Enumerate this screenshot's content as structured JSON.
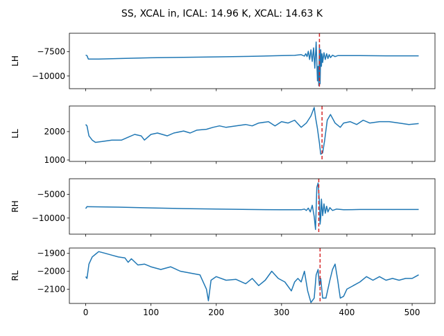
{
  "chart_data": {
    "type": "line",
    "title": "SS, XCAL in, ICAL: 14.96 K, XCAL: 14.63 K",
    "x_ticks": [
      0,
      100,
      200,
      300,
      400,
      500
    ],
    "xlim": [
      -25,
      535
    ],
    "series_color": "#1f77b4",
    "marker_color": "#d62728",
    "panels": [
      {
        "ylabel": "LH",
        "ylim": [
          -11300,
          -5600
        ],
        "yticks": [
          {
            "v": -10000,
            "label": "−10000"
          },
          {
            "v": -7500,
            "label": "−7500"
          }
        ],
        "marker_x": 358,
        "points": [
          [
            0,
            -7850
          ],
          [
            2,
            -7900
          ],
          [
            4,
            -8250
          ],
          [
            20,
            -8250
          ],
          [
            50,
            -8200
          ],
          [
            100,
            -8120
          ],
          [
            150,
            -8070
          ],
          [
            200,
            -8030
          ],
          [
            250,
            -7980
          ],
          [
            300,
            -7900
          ],
          [
            320,
            -7870
          ],
          [
            330,
            -7800
          ],
          [
            335,
            -7950
          ],
          [
            337,
            -7700
          ],
          [
            339,
            -8000
          ],
          [
            341,
            -7450
          ],
          [
            343,
            -8300
          ],
          [
            345,
            -7300
          ],
          [
            347,
            -8500
          ],
          [
            349,
            -7100
          ],
          [
            351,
            -9200
          ],
          [
            353,
            -6500
          ],
          [
            355,
            -10500
          ],
          [
            356,
            -9000
          ],
          [
            357,
            -11000
          ],
          [
            358,
            -6800
          ],
          [
            359,
            -10800
          ],
          [
            360,
            -7300
          ],
          [
            361,
            -9000
          ],
          [
            362,
            -7700
          ],
          [
            363,
            -8600
          ],
          [
            365,
            -7600
          ],
          [
            367,
            -8300
          ],
          [
            369,
            -7700
          ],
          [
            371,
            -8200
          ],
          [
            373,
            -7800
          ],
          [
            375,
            -8100
          ],
          [
            378,
            -7850
          ],
          [
            382,
            -8000
          ],
          [
            386,
            -7900
          ],
          [
            395,
            -7900
          ],
          [
            420,
            -7900
          ],
          [
            460,
            -7920
          ],
          [
            510,
            -7920
          ]
        ]
      },
      {
        "ylabel": "LL",
        "ylim": [
          950,
          2900
        ],
        "yticks": [
          {
            "v": 1000,
            "label": "1000"
          },
          {
            "v": 2000,
            "label": "2000"
          }
        ],
        "marker_x": 362,
        "points": [
          [
            0,
            2250
          ],
          [
            2,
            2200
          ],
          [
            5,
            1850
          ],
          [
            10,
            1700
          ],
          [
            15,
            1620
          ],
          [
            25,
            1650
          ],
          [
            40,
            1700
          ],
          [
            55,
            1700
          ],
          [
            65,
            1800
          ],
          [
            75,
            1900
          ],
          [
            85,
            1850
          ],
          [
            90,
            1700
          ],
          [
            100,
            1900
          ],
          [
            110,
            1950
          ],
          [
            125,
            1850
          ],
          [
            135,
            1950
          ],
          [
            150,
            2020
          ],
          [
            160,
            1950
          ],
          [
            170,
            2050
          ],
          [
            185,
            2080
          ],
          [
            195,
            2150
          ],
          [
            205,
            2200
          ],
          [
            215,
            2150
          ],
          [
            230,
            2200
          ],
          [
            245,
            2250
          ],
          [
            255,
            2200
          ],
          [
            265,
            2300
          ],
          [
            280,
            2350
          ],
          [
            290,
            2200
          ],
          [
            300,
            2350
          ],
          [
            310,
            2300
          ],
          [
            320,
            2400
          ],
          [
            330,
            2150
          ],
          [
            338,
            2300
          ],
          [
            345,
            2550
          ],
          [
            350,
            2850
          ],
          [
            352,
            2500
          ],
          [
            355,
            2100
          ],
          [
            358,
            1600
          ],
          [
            360,
            1200
          ],
          [
            363,
            1250
          ],
          [
            366,
            1700
          ],
          [
            370,
            2400
          ],
          [
            375,
            2600
          ],
          [
            382,
            2300
          ],
          [
            390,
            2150
          ],
          [
            395,
            2300
          ],
          [
            405,
            2350
          ],
          [
            415,
            2250
          ],
          [
            425,
            2400
          ],
          [
            435,
            2300
          ],
          [
            450,
            2350
          ],
          [
            465,
            2350
          ],
          [
            480,
            2300
          ],
          [
            495,
            2250
          ],
          [
            510,
            2280
          ]
        ]
      },
      {
        "ylabel": "RH",
        "ylim": [
          -13400,
          -1700
        ],
        "yticks": [
          {
            "v": -10000,
            "label": "−10000"
          },
          {
            "v": -5000,
            "label": "−5000"
          }
        ],
        "marker_x": 357,
        "points": [
          [
            0,
            -8000
          ],
          [
            2,
            -7600
          ],
          [
            50,
            -7700
          ],
          [
            100,
            -7850
          ],
          [
            150,
            -8000
          ],
          [
            200,
            -8100
          ],
          [
            250,
            -8200
          ],
          [
            300,
            -8250
          ],
          [
            330,
            -8250
          ],
          [
            335,
            -8100
          ],
          [
            338,
            -8400
          ],
          [
            341,
            -7900
          ],
          [
            344,
            -8700
          ],
          [
            347,
            -7300
          ],
          [
            350,
            -9700
          ],
          [
            352,
            -12400
          ],
          [
            354,
            -3500
          ],
          [
            356,
            -2600
          ],
          [
            358,
            -6500
          ],
          [
            359,
            -11300
          ],
          [
            360,
            -10000
          ],
          [
            361,
            -6000
          ],
          [
            363,
            -9500
          ],
          [
            365,
            -7000
          ],
          [
            367,
            -9000
          ],
          [
            369,
            -7500
          ],
          [
            371,
            -8700
          ],
          [
            374,
            -7800
          ],
          [
            378,
            -8400
          ],
          [
            384,
            -8100
          ],
          [
            395,
            -8250
          ],
          [
            420,
            -8200
          ],
          [
            460,
            -8200
          ],
          [
            510,
            -8200
          ]
        ]
      },
      {
        "ylabel": "RL",
        "ylim": [
          -2180,
          -1870
        ],
        "yticks": [
          {
            "v": -2100,
            "label": "−2100"
          },
          {
            "v": -2000,
            "label": "−2000"
          },
          {
            "v": -1900,
            "label": "−1900"
          }
        ],
        "marker_x": 359,
        "points": [
          [
            0,
            -2030
          ],
          [
            2,
            -2040
          ],
          [
            5,
            -1960
          ],
          [
            10,
            -1920
          ],
          [
            15,
            -1905
          ],
          [
            20,
            -1890
          ],
          [
            30,
            -1900
          ],
          [
            40,
            -1910
          ],
          [
            50,
            -1920
          ],
          [
            60,
            -1925
          ],
          [
            65,
            -1950
          ],
          [
            70,
            -1930
          ],
          [
            80,
            -1965
          ],
          [
            90,
            -1960
          ],
          [
            100,
            -1975
          ],
          [
            115,
            -1990
          ],
          [
            130,
            -1975
          ],
          [
            145,
            -2000
          ],
          [
            160,
            -2010
          ],
          [
            175,
            -2020
          ],
          [
            185,
            -2100
          ],
          [
            188,
            -2165
          ],
          [
            192,
            -2050
          ],
          [
            200,
            -2030
          ],
          [
            215,
            -2050
          ],
          [
            230,
            -2045
          ],
          [
            245,
            -2070
          ],
          [
            255,
            -2040
          ],
          [
            265,
            -2080
          ],
          [
            275,
            -2050
          ],
          [
            285,
            -2000
          ],
          [
            295,
            -2040
          ],
          [
            305,
            -2060
          ],
          [
            315,
            -2110
          ],
          [
            320,
            -2060
          ],
          [
            325,
            -2040
          ],
          [
            330,
            -2060
          ],
          [
            335,
            -2000
          ],
          [
            340,
            -2110
          ],
          [
            345,
            -2175
          ],
          [
            350,
            -2150
          ],
          [
            353,
            -2020
          ],
          [
            356,
            -1990
          ],
          [
            358,
            -2080
          ],
          [
            360,
            -2040
          ],
          [
            363,
            -2150
          ],
          [
            368,
            -2150
          ],
          [
            374,
            -2050
          ],
          [
            378,
            -1990
          ],
          [
            382,
            -1960
          ],
          [
            386,
            -2050
          ],
          [
            390,
            -2150
          ],
          [
            395,
            -2140
          ],
          [
            400,
            -2100
          ],
          [
            410,
            -2080
          ],
          [
            420,
            -2060
          ],
          [
            430,
            -2030
          ],
          [
            440,
            -2050
          ],
          [
            450,
            -2030
          ],
          [
            460,
            -2050
          ],
          [
            470,
            -2040
          ],
          [
            480,
            -2050
          ],
          [
            490,
            -2040
          ],
          [
            500,
            -2040
          ],
          [
            505,
            -2030
          ],
          [
            510,
            -2020
          ]
        ]
      }
    ]
  }
}
